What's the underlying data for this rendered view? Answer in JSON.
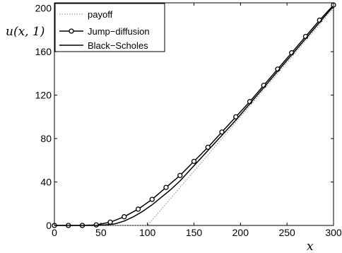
{
  "chart_data": {
    "type": "line",
    "title": "",
    "xlabel": "x",
    "ylabel": "u(x, 1)",
    "xlim": [
      0,
      300
    ],
    "ylim": [
      0,
      205
    ],
    "xticks": [
      "0",
      "50",
      "100",
      "150",
      "200",
      "250",
      "300"
    ],
    "yticks": [
      "0",
      "40",
      "80",
      "120",
      "160",
      "200"
    ],
    "grid": false,
    "legend_position": "top-left",
    "series": [
      {
        "name": "payoff",
        "style": "dotted",
        "color": "#888888",
        "x": [
          0,
          100,
          300
        ],
        "y": [
          0,
          0,
          200
        ]
      },
      {
        "name": "Jump−diffusion",
        "style": "solid-circle-markers",
        "color": "#000000",
        "x": [
          0,
          15,
          30,
          45,
          60,
          75,
          90,
          105,
          120,
          135,
          150,
          165,
          180,
          195,
          210,
          225,
          240,
          255,
          270,
          285,
          300
        ],
        "y": [
          0,
          0,
          0,
          0.5,
          3,
          8,
          15,
          24,
          35,
          46,
          59,
          72,
          86,
          100,
          114,
          129,
          144,
          159,
          174,
          189,
          203
        ]
      },
      {
        "name": "Black−Scholes",
        "style": "solid",
        "color": "#000000",
        "x": [
          0,
          30,
          45,
          55,
          65,
          75,
          85,
          95,
          105,
          115,
          125,
          135,
          150,
          165,
          180,
          195,
          210,
          225,
          240,
          255,
          270,
          285,
          300
        ],
        "y": [
          0,
          0,
          0,
          0.5,
          1.5,
          4,
          8,
          13,
          19,
          26,
          33,
          41,
          55,
          69,
          83,
          97,
          112,
          127,
          142,
          157,
          172,
          187,
          202
        ]
      }
    ]
  }
}
